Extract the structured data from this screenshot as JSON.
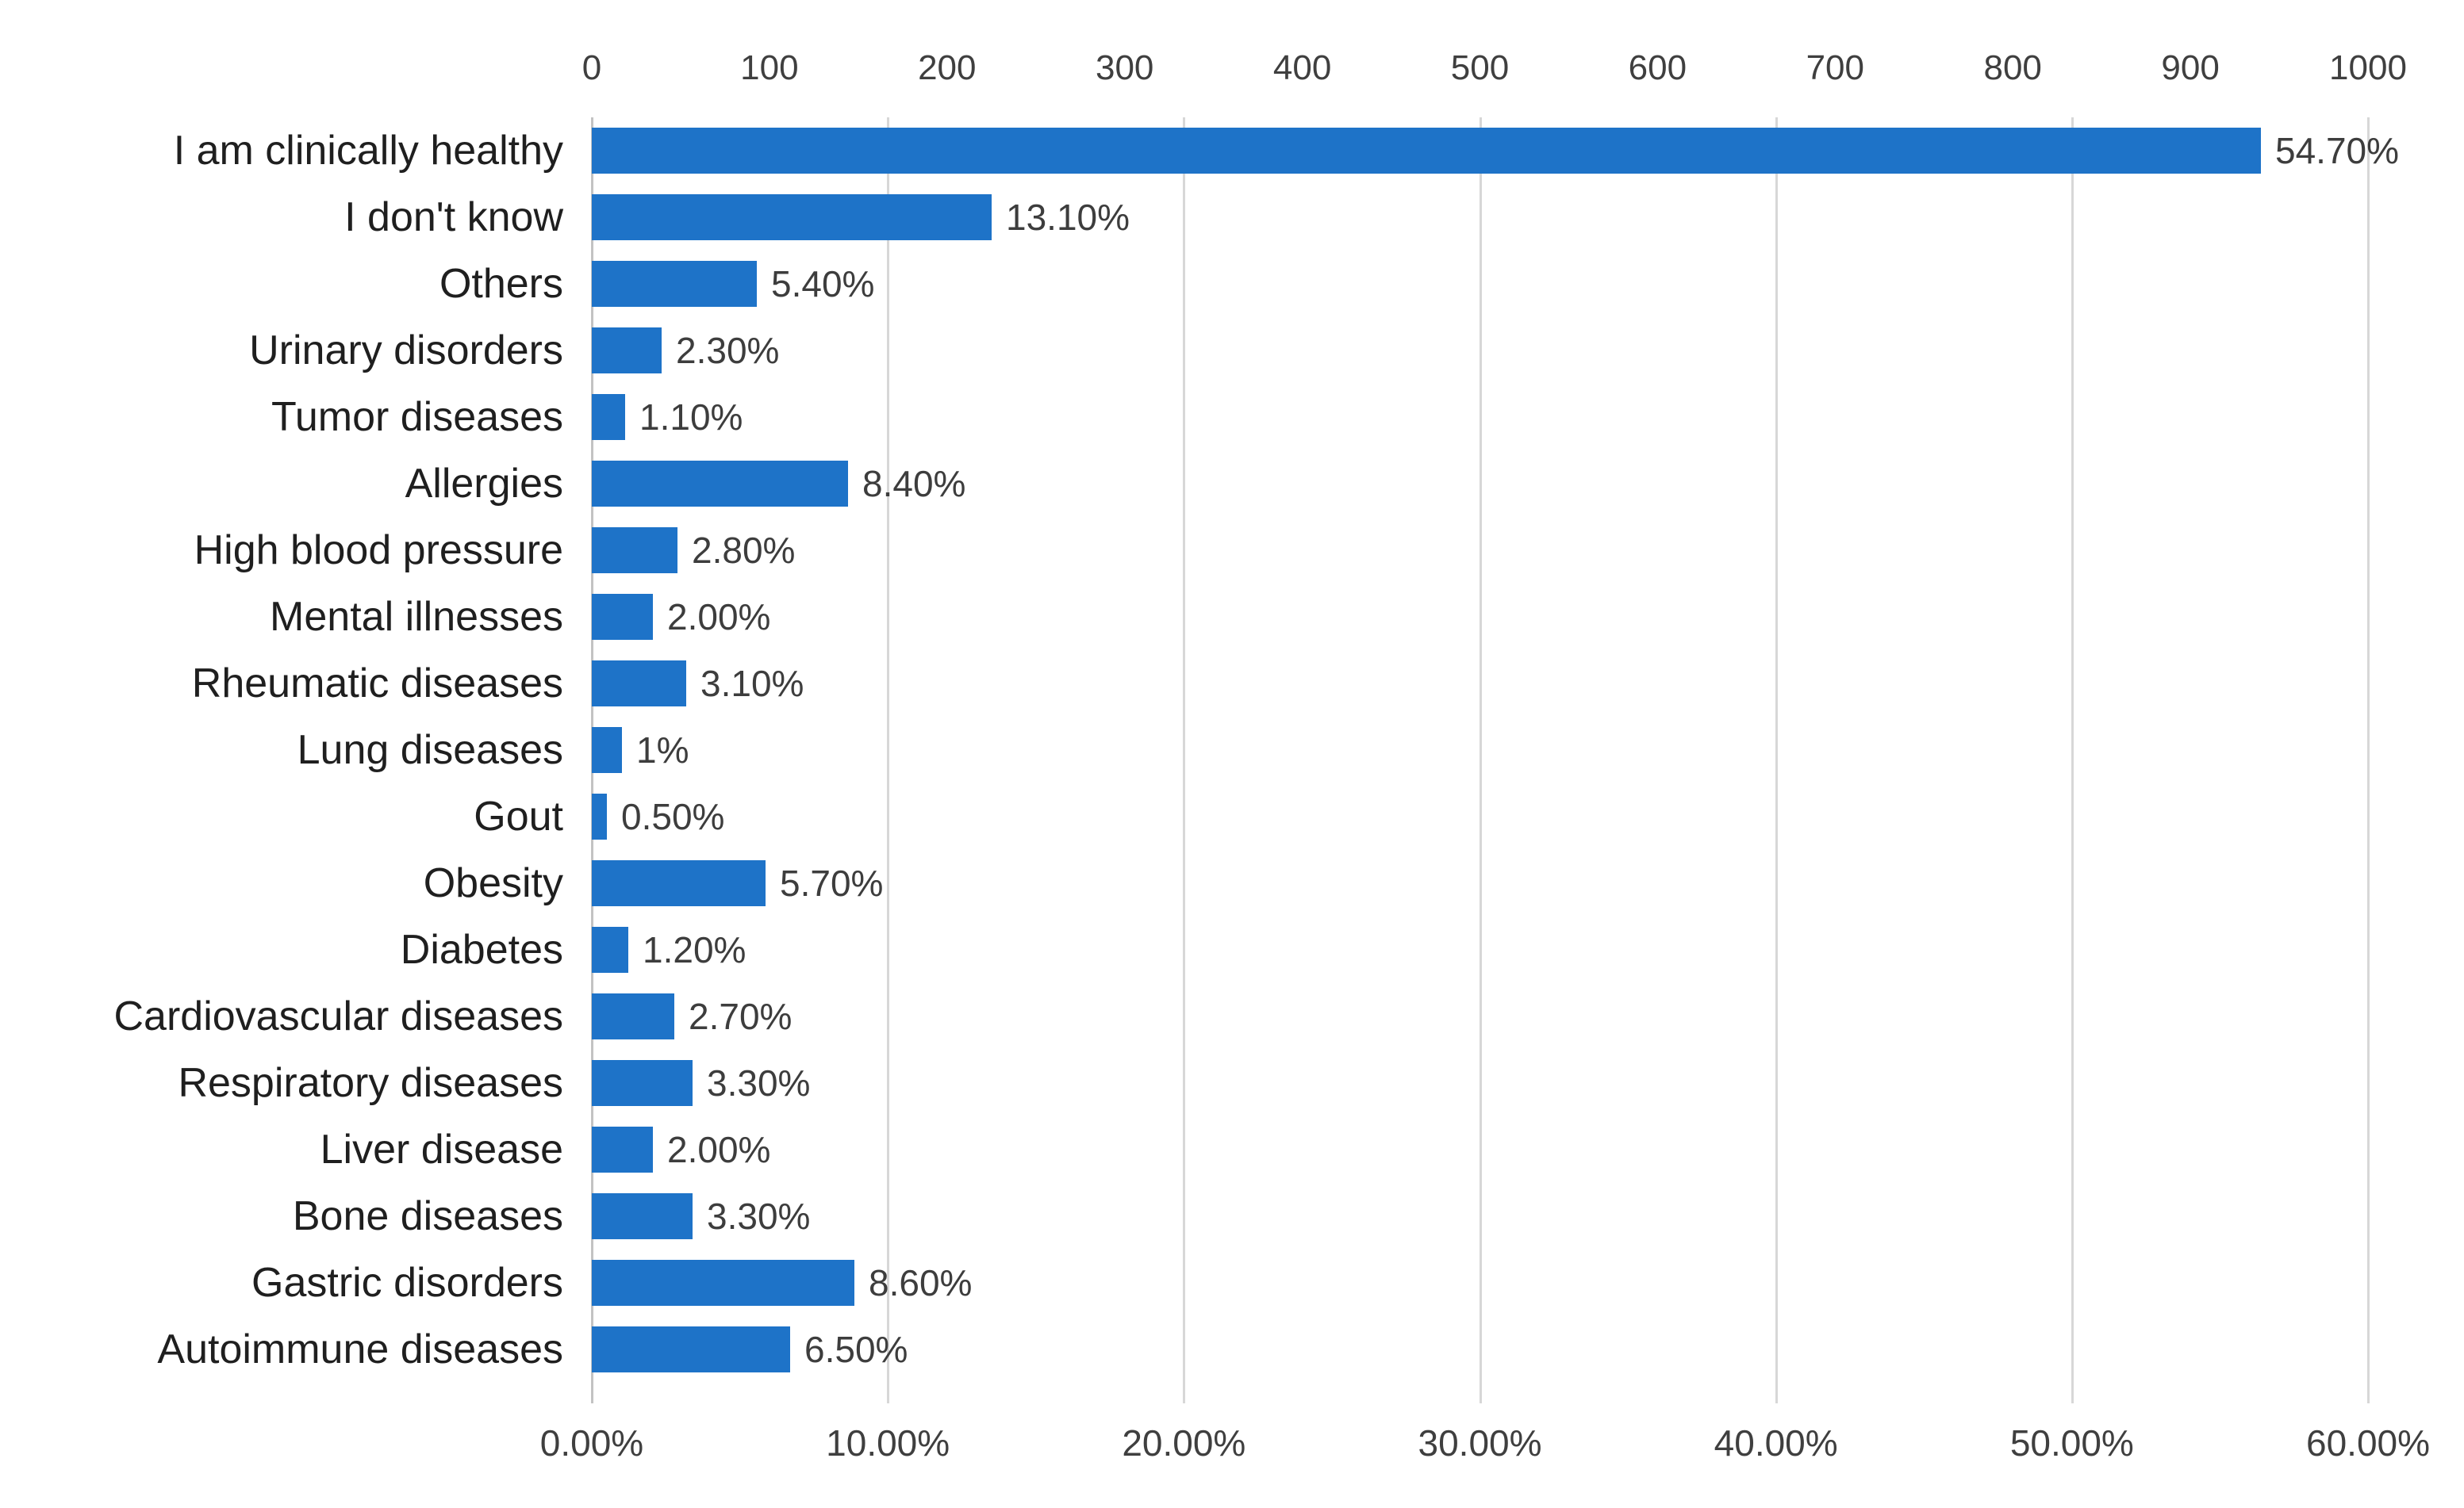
{
  "chart_data": {
    "type": "bar",
    "orientation": "horizontal",
    "title": "",
    "xlabel": "",
    "ylabel": "",
    "legend": null,
    "grid": true,
    "categories": [
      "I am clinically healthy",
      "I don't know",
      "Others",
      "Urinary disorders",
      "Tumor diseases",
      "Allergies",
      "High blood pressure",
      "Mental illnesses",
      "Rheumatic diseases",
      "Lung diseases",
      "Gout",
      "Obesity",
      "Diabetes",
      "Cardiovascular diseases",
      "Respiratory diseases",
      "Liver disease",
      "Bone diseases",
      "Gastric disorders",
      "Autoimmune diseases"
    ],
    "values": [
      54.7,
      13.1,
      5.4,
      2.3,
      1.1,
      8.4,
      2.8,
      2.0,
      3.1,
      1.0,
      0.5,
      5.7,
      1.2,
      2.7,
      3.3,
      2.0,
      3.3,
      8.6,
      6.5
    ],
    "value_labels": [
      "54.70%",
      "13.10%",
      "5.40%",
      "2.30%",
      "1.10%",
      "8.40%",
      "2.80%",
      "2.00%",
      "3.10%",
      "1%",
      "0.50%",
      "5.70%",
      "1.20%",
      "2.70%",
      "3.30%",
      "2.00%",
      "3.30%",
      "8.60%",
      "6.50%"
    ],
    "top_axis": {
      "ticks": [
        0,
        100,
        200,
        300,
        400,
        500,
        600,
        700,
        800,
        900,
        1000
      ],
      "min": 0,
      "max": 1000
    },
    "bottom_axis": {
      "tick_labels": [
        "0.00%",
        "10.00%",
        "20.00%",
        "30.00%",
        "40.00%",
        "50.00%",
        "60.00%"
      ],
      "min": 0,
      "max": 60
    },
    "scale": {
      "bar_axis": "top",
      "bar_axis_max": 1000,
      "percent_to_count": 17.18
    },
    "colors": {
      "bar": "#1e73c8",
      "gridline": "#d7d7d7",
      "axis_line": "#c3c3c3",
      "tick_text": "#3f3f3f",
      "category_text": "#1f1f1f",
      "value_text": "#3d3d3d",
      "background": "#ffffff"
    }
  }
}
